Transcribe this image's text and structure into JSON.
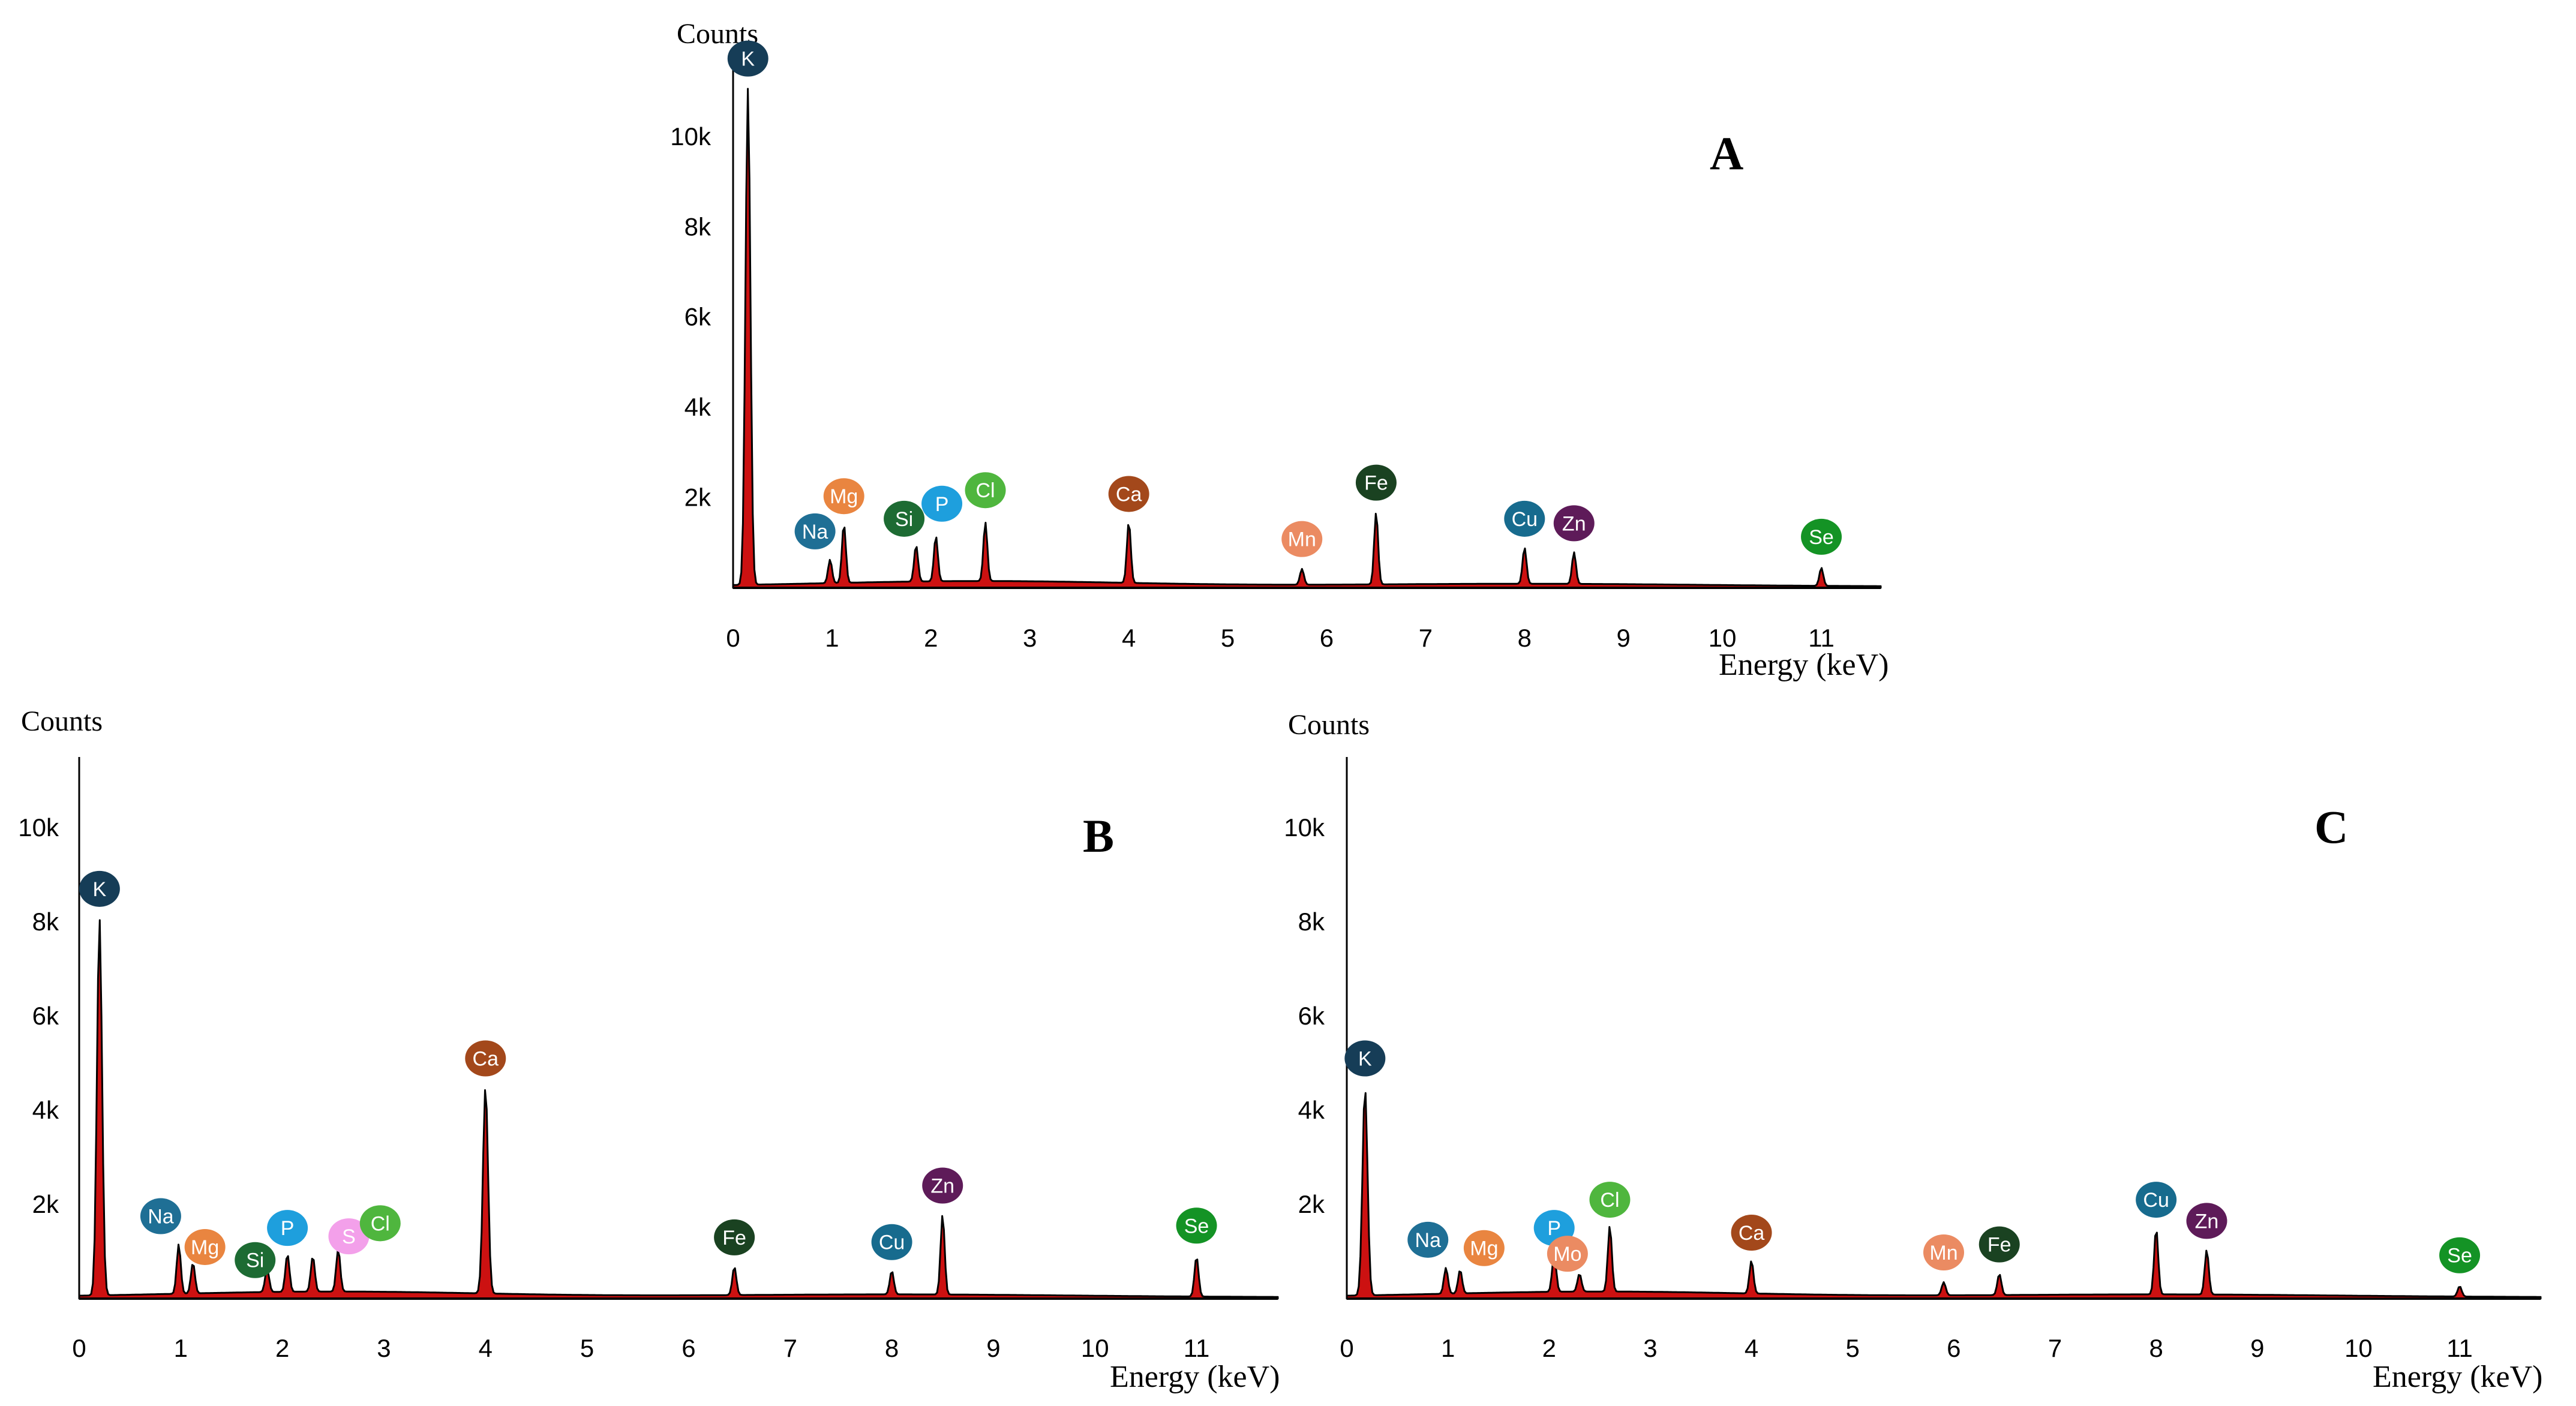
{
  "colors": {
    "fill": "#cc1111",
    "stroke": "#000000",
    "K": "#163d57",
    "Na": "#1f6f95",
    "Mg": "#e98540",
    "Si": "#1d6b33",
    "P": "#1e9fdd",
    "S": "#f3a0ea",
    "Cl": "#4fb63e",
    "Ca": "#a3481b",
    "Mn": "#eb8b62",
    "Mo": "#eb8b62",
    "Fe": "#1a4221",
    "Cu": "#176b8e",
    "Zn": "#5e1b59",
    "Se": "#149325"
  },
  "chart_data": [
    {
      "type": "line",
      "panel": "A",
      "title": "A",
      "ylabel": "Counts",
      "xlabel": "Energy (keV)",
      "xlim": [
        0,
        11.6
      ],
      "ylim": [
        0,
        11500
      ],
      "xticks": [
        "0",
        "1",
        "2",
        "3",
        "4",
        "5",
        "6",
        "7",
        "8",
        "9",
        "10",
        "11"
      ],
      "yticks": [
        "2k",
        "4k",
        "6k",
        "8k",
        "10k"
      ],
      "peaks": [
        {
          "element": "K",
          "energy": 0.15,
          "counts": 11000
        },
        {
          "element": "Na",
          "energy": 0.98,
          "counts": 520
        },
        {
          "element": "Mg",
          "energy": 1.12,
          "counts": 1300
        },
        {
          "element": "Si",
          "energy": 1.85,
          "counts": 800
        },
        {
          "element": "P",
          "energy": 2.05,
          "counts": 1000
        },
        {
          "element": "Cl",
          "energy": 2.55,
          "counts": 1300
        },
        {
          "element": "Ca",
          "energy": 4.0,
          "counts": 1350
        },
        {
          "element": "Mn",
          "energy": 5.75,
          "counts": 350
        },
        {
          "element": "Fe",
          "energy": 6.5,
          "counts": 1600
        },
        {
          "element": "Cu",
          "energy": 8.0,
          "counts": 800
        },
        {
          "element": "Zn",
          "energy": 8.5,
          "counts": 700
        },
        {
          "element": "Se",
          "energy": 11.0,
          "counts": 400
        }
      ]
    },
    {
      "type": "line",
      "panel": "B",
      "title": "B",
      "ylabel": "Counts",
      "xlabel": "Energy (keV)",
      "xlim": [
        0,
        11.8
      ],
      "ylim": [
        0,
        11500
      ],
      "xticks": [
        "0",
        "1",
        "2",
        "3",
        "4",
        "5",
        "6",
        "7",
        "8",
        "9",
        "10",
        "11"
      ],
      "yticks": [
        "2k",
        "4k",
        "6k",
        "8k",
        "10k"
      ],
      "peaks": [
        {
          "element": "K",
          "energy": 0.2,
          "counts": 8000
        },
        {
          "element": "Na",
          "energy": 0.98,
          "counts": 1050
        },
        {
          "element": "Mg",
          "energy": 1.12,
          "counts": 650
        },
        {
          "element": "Si",
          "energy": 1.85,
          "counts": 500
        },
        {
          "element": "P",
          "energy": 2.05,
          "counts": 800
        },
        {
          "element": "S",
          "energy": 2.3,
          "counts": 750
        },
        {
          "element": "Cl",
          "energy": 2.55,
          "counts": 900
        },
        {
          "element": "Ca",
          "energy": 4.0,
          "counts": 4400
        },
        {
          "element": "Fe",
          "energy": 6.45,
          "counts": 600
        },
        {
          "element": "Cu",
          "energy": 8.0,
          "counts": 500
        },
        {
          "element": "Zn",
          "energy": 8.5,
          "counts": 1700
        },
        {
          "element": "Se",
          "energy": 11.0,
          "counts": 850
        }
      ]
    },
    {
      "type": "line",
      "panel": "C",
      "title": "C",
      "ylabel": "Counts",
      "xlabel": "Energy (keV)",
      "xlim": [
        0,
        11.8
      ],
      "ylim": [
        0,
        11500
      ],
      "xticks": [
        "0",
        "1",
        "2",
        "3",
        "4",
        "5",
        "6",
        "7",
        "8",
        "9",
        "10",
        "11"
      ],
      "yticks": [
        "2k",
        "4k",
        "6k",
        "8k",
        "10k"
      ],
      "peaks": [
        {
          "element": "K",
          "energy": 0.18,
          "counts": 4400
        },
        {
          "element": "Na",
          "energy": 0.98,
          "counts": 550
        },
        {
          "element": "Mg",
          "energy": 1.12,
          "counts": 500
        },
        {
          "element": "P",
          "energy": 2.05,
          "counts": 800
        },
        {
          "element": "Mo",
          "energy": 2.3,
          "counts": 380
        },
        {
          "element": "Cl",
          "energy": 2.6,
          "counts": 1400
        },
        {
          "element": "Ca",
          "energy": 4.0,
          "counts": 700
        },
        {
          "element": "Mn",
          "energy": 5.9,
          "counts": 280
        },
        {
          "element": "Fe",
          "energy": 6.45,
          "counts": 450
        },
        {
          "element": "Cu",
          "energy": 8.0,
          "counts": 1400
        },
        {
          "element": "Zn",
          "energy": 8.5,
          "counts": 950
        },
        {
          "element": "Se",
          "energy": 11.0,
          "counts": 220
        }
      ]
    }
  ]
}
